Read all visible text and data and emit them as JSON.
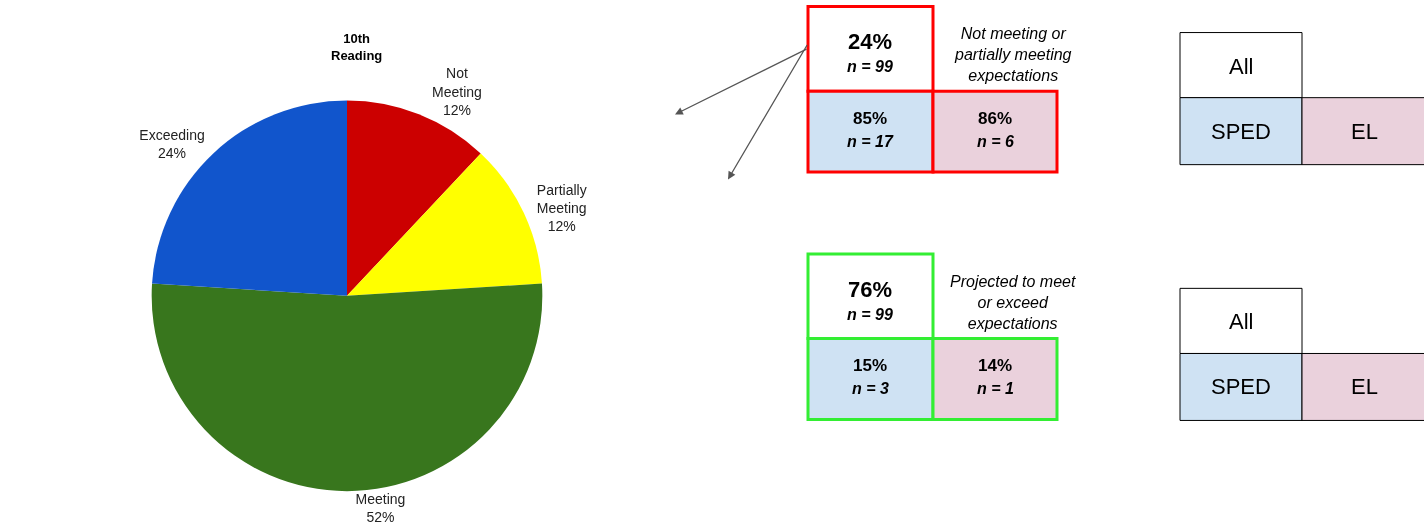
{
  "chart_data": [
    {
      "type": "pie",
      "title": "10th Reading",
      "categories": [
        "Not Meeting",
        "Partially Meeting",
        "Meeting",
        "Exceeding"
      ],
      "values": [
        12,
        12,
        52,
        24
      ],
      "value_labels": [
        "12%",
        "12%",
        "52%",
        "24%"
      ],
      "colors": [
        "#cc0000",
        "#ffff00",
        "#38761d",
        "#1155cc"
      ]
    },
    {
      "type": "other",
      "color": "#ff0000",
      "colors": [
        "#ffffff",
        "#cfe2f3",
        "#ead1dc"
      ],
      "annotations": [
        "24%",
        "n = 99",
        "85%",
        "n = 17",
        "86%",
        "n = 6",
        "Not meeting or partially meeting expectations"
      ]
    },
    {
      "type": "other",
      "color": "#000000",
      "colors": [
        "#ffffff",
        "#cfe2f3",
        "#ead1dc"
      ],
      "annotations": [
        "All",
        "SPED",
        "EL"
      ]
    },
    {
      "type": "other",
      "color": "#33ee33",
      "colors": [
        "#ffffff",
        "#cfe2f3",
        "#ead1dc"
      ],
      "annotations": [
        "76%",
        "n = 99",
        "15%",
        "n = 3",
        "14%",
        "n = 1",
        "Projected to meet or exceed expectations"
      ]
    },
    {
      "type": "other",
      "color": "#000000",
      "colors": [
        "#ffffff",
        "#cfe2f3",
        "#ead1dc"
      ],
      "annotations": [
        "All",
        "SPED",
        "EL"
      ]
    }
  ]
}
